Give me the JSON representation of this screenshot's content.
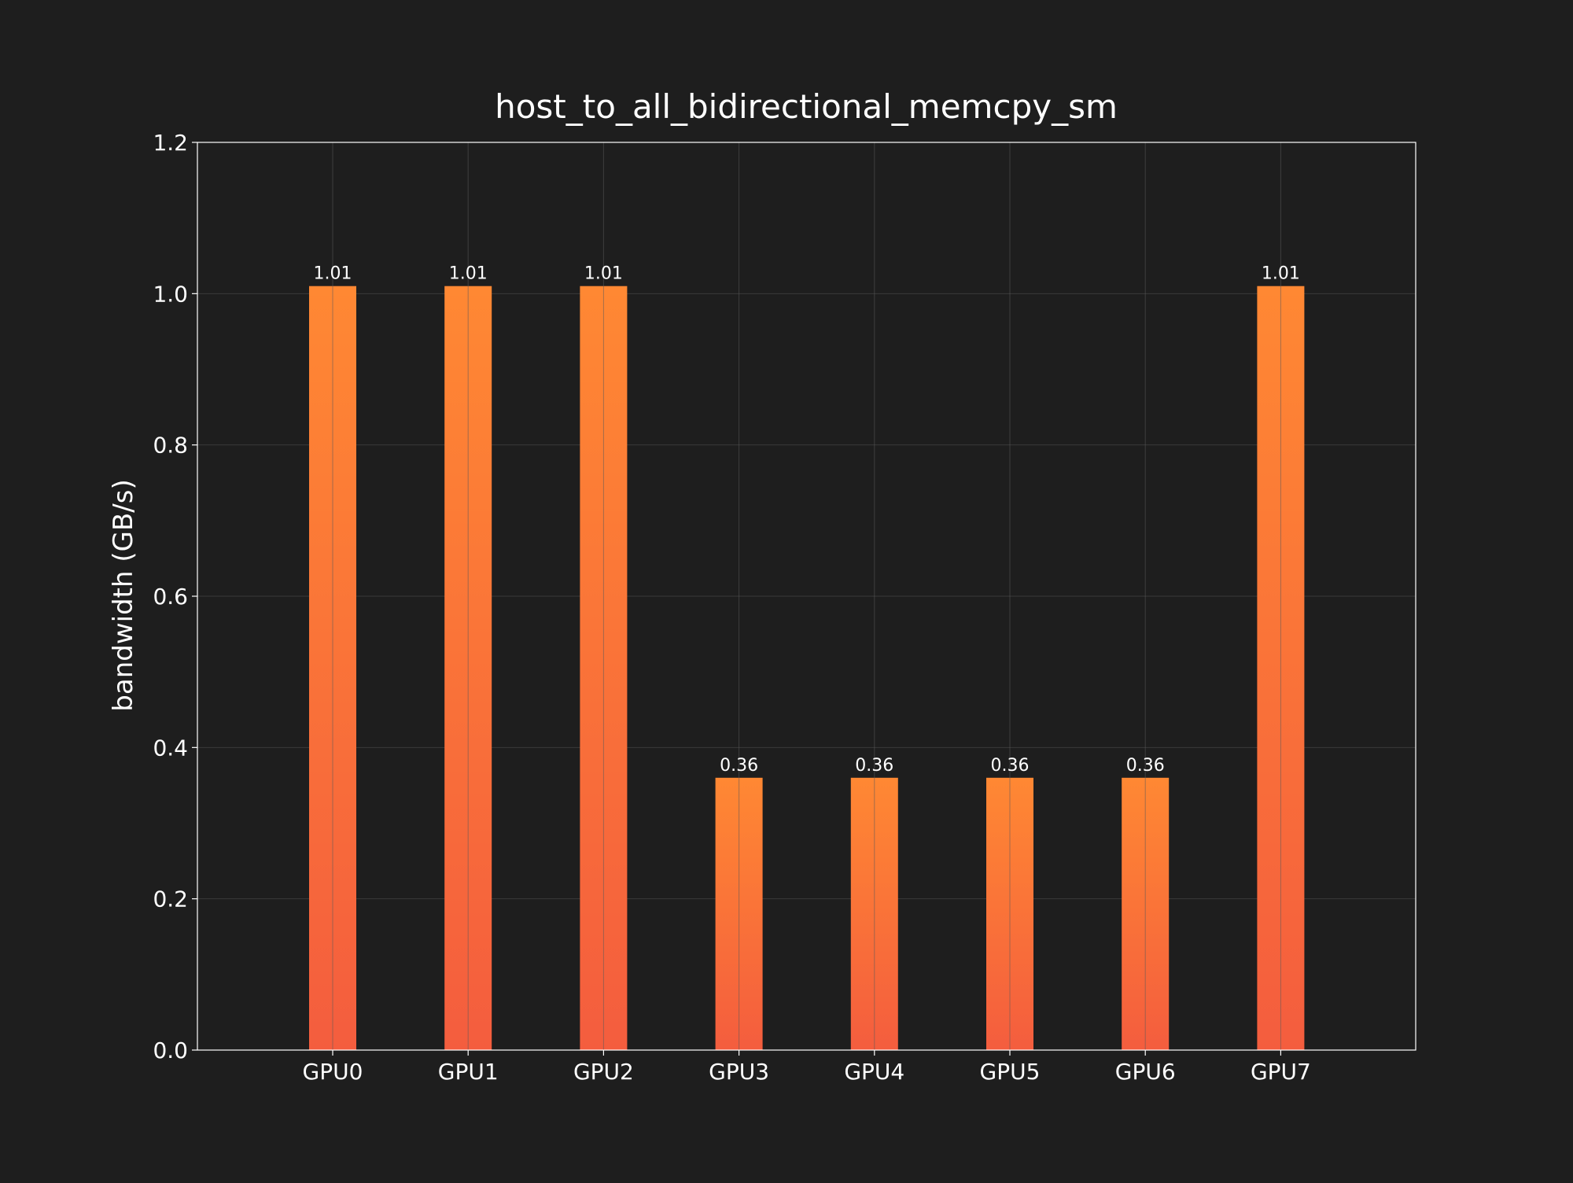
{
  "chart_data": {
    "type": "bar",
    "title": "host_to_all_bidirectional_memcpy_sm",
    "xlabel": "",
    "ylabel": "bandwidth (GB/s)",
    "categories": [
      "GPU0",
      "GPU1",
      "GPU2",
      "GPU3",
      "GPU4",
      "GPU5",
      "GPU6",
      "GPU7"
    ],
    "values": [
      1.01,
      1.01,
      1.01,
      0.36,
      0.36,
      0.36,
      0.36,
      1.01
    ],
    "value_labels": [
      "1.01",
      "1.01",
      "1.01",
      "0.36",
      "0.36",
      "0.36",
      "0.36",
      "1.01"
    ],
    "ylim": [
      0,
      1.2
    ],
    "yticks": [
      "0.0",
      "0.2",
      "0.4",
      "0.6",
      "0.8",
      "1.0",
      "1.2"
    ],
    "grid": true,
    "colors": {
      "background": "#1e1e1e",
      "bar_top": "#ff8833",
      "bar_bottom": "#f45d3e",
      "grid": "#3a3a3a",
      "axes": "#ffffff",
      "text": "#ffffff"
    }
  }
}
